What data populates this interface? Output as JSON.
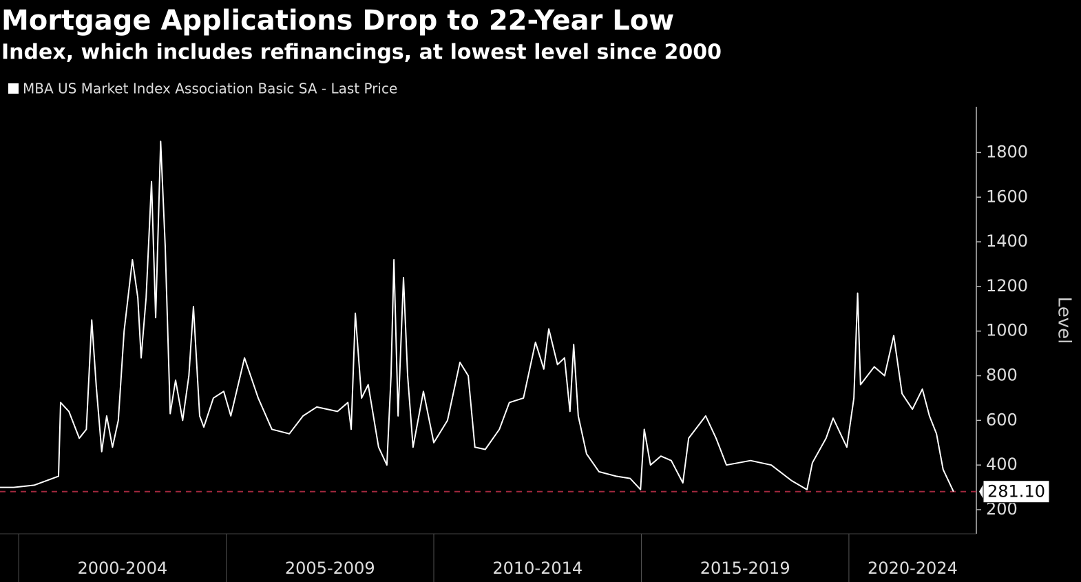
{
  "chart_data": {
    "type": "line",
    "title": "Mortgage Applications Drop to 22-Year Low",
    "subtitle": "Index, which includes refinancings, at lowest level since 2000",
    "y_axis_label": "Level",
    "legend_position": "top-left",
    "series": [
      {
        "name": "MBA US Market Index Association Basic SA - Last Price",
        "color": "#ffffff",
        "values": [
          300,
          300,
          310,
          350,
          680,
          640,
          520,
          560,
          1050,
          750,
          460,
          620,
          480,
          600,
          1000,
          1320,
          1150,
          880,
          1150,
          1670,
          1060,
          1850,
          1380,
          630,
          780,
          600,
          800,
          1110,
          620,
          570,
          700,
          730,
          620,
          880,
          700,
          560,
          540,
          620,
          660,
          640,
          680,
          560,
          1080,
          700,
          760,
          480,
          400,
          800,
          1320,
          620,
          1240,
          800,
          480,
          730,
          500,
          600,
          860,
          800,
          480,
          470,
          560,
          680,
          700,
          950,
          830,
          1010,
          850,
          880,
          640,
          940,
          620,
          450,
          370,
          350,
          340,
          290,
          560,
          400,
          440,
          420,
          320,
          520,
          620,
          520,
          400,
          420,
          400,
          330,
          290,
          410,
          520,
          610,
          480,
          700,
          1170,
          760,
          840,
          800,
          980,
          720,
          650,
          740,
          620,
          540,
          380,
          281.1
        ]
      }
    ],
    "x": [
      1999.55,
      1999.88,
      2000.38,
      2000.96,
      2001.01,
      2001.21,
      2001.46,
      2001.63,
      2001.76,
      2001.87,
      2002.0,
      2002.12,
      2002.26,
      2002.4,
      2002.54,
      2002.74,
      2002.87,
      2002.95,
      2003.07,
      2003.2,
      2003.3,
      2003.42,
      2003.53,
      2003.65,
      2003.78,
      2003.95,
      2004.1,
      2004.21,
      2004.36,
      2004.46,
      2004.69,
      2004.94,
      2005.11,
      2005.44,
      2005.77,
      2006.1,
      2006.52,
      2006.85,
      2007.18,
      2007.68,
      2007.93,
      2008.01,
      2008.11,
      2008.26,
      2008.42,
      2008.67,
      2008.87,
      2008.97,
      2009.04,
      2009.14,
      2009.27,
      2009.37,
      2009.5,
      2009.75,
      2010.0,
      2010.33,
      2010.63,
      2010.83,
      2010.99,
      2011.24,
      2011.58,
      2011.82,
      2012.16,
      2012.45,
      2012.65,
      2012.77,
      2012.98,
      2013.15,
      2013.28,
      2013.37,
      2013.48,
      2013.68,
      2013.98,
      2014.39,
      2014.73,
      2014.98,
      2015.07,
      2015.22,
      2015.47,
      2015.72,
      2016.0,
      2016.14,
      2016.55,
      2016.8,
      2017.05,
      2017.63,
      2018.13,
      2018.62,
      2018.99,
      2019.12,
      2019.45,
      2019.62,
      2019.95,
      2020.12,
      2020.21,
      2020.28,
      2020.61,
      2020.86,
      2021.08,
      2021.28,
      2021.53,
      2021.77,
      2021.94,
      2022.11,
      2022.27,
      2022.52
    ],
    "xlim": [
      1999.55,
      2023.07
    ],
    "period_labels": [
      "2000-2004",
      "2005-2009",
      "2010-2014",
      "2015-2019",
      "2020-2024"
    ],
    "period_starts": [
      2000,
      2005,
      2010,
      2015,
      2020
    ],
    "ylim": [
      92,
      2005
    ],
    "yticks": [
      200,
      400,
      600,
      800,
      1000,
      1200,
      1400,
      1600,
      1800
    ],
    "reference_line": {
      "value": 281.1,
      "label": "281.10",
      "color": "#a3283e"
    }
  }
}
